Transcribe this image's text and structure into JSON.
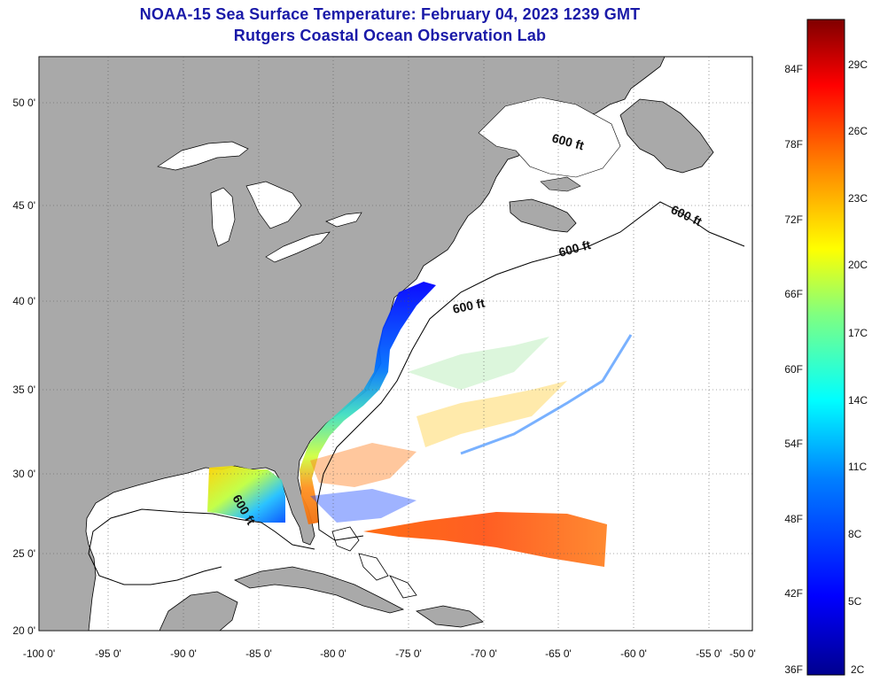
{
  "header": {
    "title_line1": "NOAA-15 Sea Surface Temperature:  February 04, 2023 1239 GMT",
    "title_line2": "Rutgers Coastal Ocean Observation Lab"
  },
  "map": {
    "x_ticks": [
      "-100 0'",
      "-95 0'",
      "-90 0'",
      "-85 0'",
      "-80 0'",
      "-75 0'",
      "-70 0'",
      "-65 0'",
      "-60 0'",
      "-55 0'",
      "-50 0'"
    ],
    "y_ticks": [
      "50 0'",
      "45 0'",
      "40 0'",
      "35 0'",
      "30 0'",
      "25 0'",
      "20 0'"
    ],
    "contour_labels": [
      "600 ft",
      "600 ft",
      "600 ft",
      "600 ft",
      "600 ft"
    ],
    "colors": {
      "land": "#a9a9a9",
      "ocean": "#ffffff",
      "grid": "#555555"
    }
  },
  "colorbar": {
    "fahrenheit_labels": [
      "84F",
      "78F",
      "72F",
      "66F",
      "60F",
      "54F",
      "48F",
      "42F",
      "36F"
    ],
    "celsius_labels": [
      "29C",
      "26C",
      "23C",
      "20C",
      "17C",
      "14C",
      "11C",
      "8C",
      "5C",
      "2C"
    ],
    "colors": [
      "#00008f",
      "#0000ff",
      "#0080ff",
      "#00ffff",
      "#80ff80",
      "#ffff00",
      "#ff8000",
      "#ff0000",
      "#800000"
    ]
  }
}
